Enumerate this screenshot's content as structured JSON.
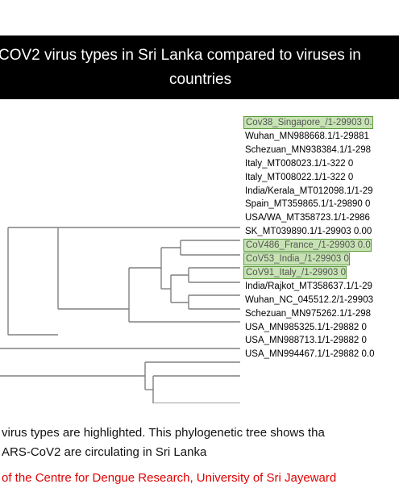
{
  "title": {
    "line1": "COV2 virus types in Sri Lanka compared to viruses in",
    "line2": "countries"
  },
  "leaves": [
    {
      "label": "Cov38_Singapore_/1-29903 0.",
      "highlight": true
    },
    {
      "label": "Wuhan_MN988668.1/1-29881",
      "highlight": false
    },
    {
      "label": "Schezuan_MN938384.1/1-298",
      "highlight": false
    },
    {
      "label": "Italy_MT008023.1/1-322 0",
      "highlight": false
    },
    {
      "label": "Italy_MT008022.1/1-322 0",
      "highlight": false
    },
    {
      "label": "India/Kerala_MT012098.1/1-29",
      "highlight": false
    },
    {
      "label": "Spain_MT359865.1/1-29890 0",
      "highlight": false
    },
    {
      "label": "USA/WA_MT358723.1/1-2986",
      "highlight": false
    },
    {
      "label": "SK_MT039890.1/1-29903 0.00",
      "highlight": false
    },
    {
      "label": "CoV486_France_/1-29903 0.0",
      "highlight": true
    },
    {
      "label": "CoV53_India_/1-29903 0",
      "highlight": true
    },
    {
      "label": "CoV91_Italy_/1-29903 0",
      "highlight": true
    },
    {
      "label": "India/Rajkot_MT358637.1/1-29",
      "highlight": false
    },
    {
      "label": "Wuhan_NC_045512.2/1-29903",
      "highlight": false
    },
    {
      "label": "Schezuan_MN975262.1/1-298",
      "highlight": false
    },
    {
      "label": "USA_MN985325.1/1-29882 0",
      "highlight": false
    },
    {
      "label": "USA_MN988713.1/1-29882 0",
      "highlight": false
    },
    {
      "label": "USA_MN994467.1/1-29882 0.0",
      "highlight": false
    }
  ],
  "caption": {
    "line1": "virus types are highlighted. This phylogenetic tree shows tha",
    "line2": "ARS-CoV2 are circulating in Sri Lanka"
  },
  "credit": "of the Centre for Dengue Research, University of Sri Jayeward",
  "colors": {
    "branch": "#808080",
    "highlight_fill": "#c7e3b3",
    "highlight_border": "#5a9a3c",
    "credit_text": "#e00000"
  }
}
